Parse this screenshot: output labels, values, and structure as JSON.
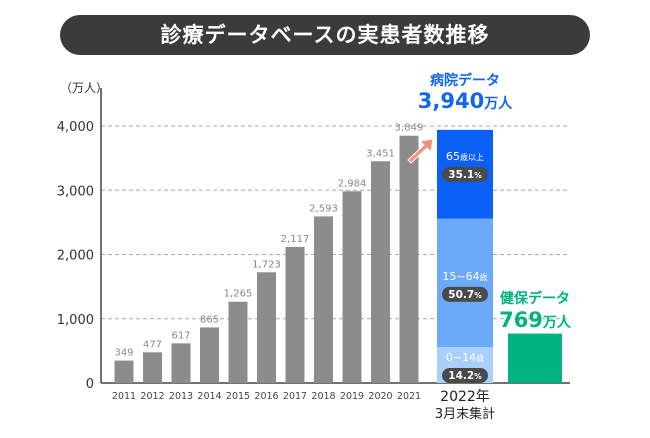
{
  "title": "診療データベースの実患者数推移",
  "chart_data": {
    "type": "bar",
    "ylabel": "（万人）",
    "ylim": [
      0,
      4000
    ],
    "yticks": [
      0,
      1000,
      2000,
      3000,
      4000
    ],
    "ytick_labels": [
      "0",
      "1,000",
      "2,000",
      "3,000",
      "4,000"
    ],
    "grid": true,
    "categories": [
      "2011",
      "2012",
      "2013",
      "2014",
      "2015",
      "2016",
      "2017",
      "2018",
      "2019",
      "2020",
      "2021"
    ],
    "values": [
      349,
      477,
      617,
      865,
      1265,
      1723,
      2117,
      2593,
      2984,
      3451,
      3849
    ],
    "value_labels": [
      "349",
      "477",
      "617",
      "865",
      "1,265",
      "1,723",
      "2,117",
      "2,593",
      "2,984",
      "3,451",
      "3,849"
    ],
    "bar_color": "#8c8c8c",
    "snapshot": {
      "category_line1": "2022年",
      "category_line2": "3月末集計",
      "hospital": {
        "title": "病院データ",
        "total": 3940,
        "total_label": "3,940",
        "unit": "万人",
        "title_color": "#1166ee",
        "segments": [
          {
            "label": "0~14",
            "suffix": "歳",
            "percent": 14.2,
            "percent_label": "14.2",
            "color": "#a9d0fb"
          },
          {
            "label": "15~64",
            "suffix": "歳",
            "percent": 50.7,
            "percent_label": "50.7",
            "color": "#6aaaf8"
          },
          {
            "label": "65",
            "suffix": "歳以上",
            "percent": 35.1,
            "percent_label": "35.1",
            "color": "#0a5ff5"
          }
        ]
      },
      "insurance": {
        "title": "健保データ",
        "total": 769,
        "total_label": "769",
        "unit": "万人",
        "color": "#00b380"
      }
    },
    "arrow_color": "#f4907e"
  }
}
